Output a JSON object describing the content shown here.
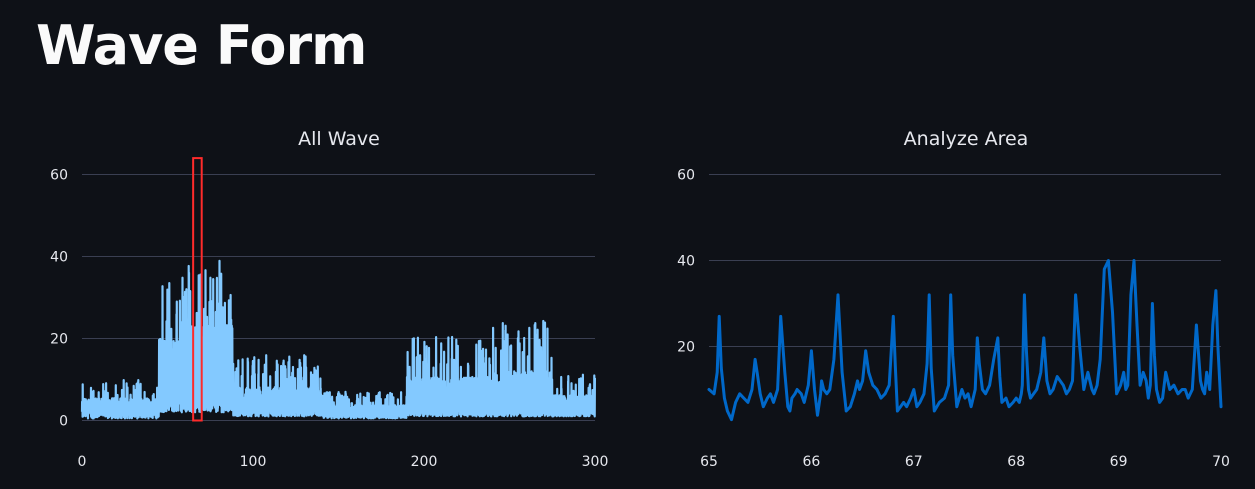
{
  "page": {
    "title": "Wave Form"
  },
  "colors": {
    "background": "#0e1117",
    "all_wave_line": "#83c9ff",
    "analyze_line": "#0068c9",
    "selection_box": "#ff2b2b",
    "grid": "#3a3f52"
  },
  "chart_data": [
    {
      "type": "line",
      "title": "All Wave",
      "xlabel": "",
      "ylabel": "",
      "xlim": [
        0,
        300
      ],
      "ylim": [
        0,
        65
      ],
      "xticks": [
        0,
        100,
        200,
        300
      ],
      "yticks": [
        0,
        20,
        40,
        60
      ],
      "grid": true,
      "series": [
        {
          "segments": [
            {
              "x_start": 0,
              "x_end": 45,
              "baseline": [
                0.5,
                3
              ],
              "peak": [
                3,
                10
              ]
            },
            {
              "x_start": 45,
              "x_end": 58,
              "baseline": [
                2,
                6
              ],
              "peak": [
                12,
                35
              ]
            },
            {
              "x_start": 58,
              "x_end": 88,
              "baseline": [
                2,
                6
              ],
              "peak": [
                15,
                39
              ]
            },
            {
              "x_start": 88,
              "x_end": 140,
              "baseline": [
                1,
                3
              ],
              "peak": [
                4,
                16
              ]
            },
            {
              "x_start": 140,
              "x_end": 190,
              "baseline": [
                0.5,
                2
              ],
              "peak": [
                2,
                7
              ]
            },
            {
              "x_start": 190,
              "x_end": 240,
              "baseline": [
                1,
                3
              ],
              "peak": [
                5,
                21
              ]
            },
            {
              "x_start": 240,
              "x_end": 275,
              "baseline": [
                1,
                3
              ],
              "peak": [
                5,
                25
              ]
            },
            {
              "x_start": 275,
              "x_end": 300,
              "baseline": [
                1,
                3
              ],
              "peak": [
                3,
                12
              ]
            }
          ]
        }
      ],
      "selection": {
        "x": [
          65,
          70
        ],
        "y": [
          0,
          64
        ]
      }
    },
    {
      "type": "line",
      "title": "Analyze Area",
      "xlabel": "",
      "ylabel": "",
      "xlim": [
        65,
        70
      ],
      "ylim": [
        0,
        65
      ],
      "xticks": [
        65,
        66,
        67,
        68,
        69,
        70
      ],
      "yticks": [
        20,
        40,
        60
      ],
      "grid": true,
      "series": [
        {
          "x": [
            65.0,
            65.05,
            65.08,
            65.1,
            65.12,
            65.15,
            65.18,
            65.22,
            65.26,
            65.3,
            65.34,
            65.38,
            65.42,
            65.45,
            65.47,
            65.5,
            65.53,
            65.57,
            65.6,
            65.63,
            65.67,
            65.7,
            65.74,
            65.77,
            65.79,
            65.81,
            65.84,
            65.86,
            65.9,
            65.93,
            65.97,
            66.0,
            66.03,
            66.06,
            66.09,
            66.1,
            66.12,
            66.15,
            66.18,
            66.22,
            66.26,
            66.3,
            66.34,
            66.38,
            66.42,
            66.45,
            66.47,
            66.5,
            66.53,
            66.56,
            66.6,
            66.64,
            66.68,
            66.72,
            66.76,
            66.8,
            66.82,
            66.84,
            66.87,
            66.9,
            66.93,
            66.97,
            67.0,
            67.03,
            67.06,
            67.1,
            67.13,
            67.15,
            67.17,
            67.2,
            67.25,
            67.3,
            67.34,
            67.36,
            67.38,
            67.42,
            67.47,
            67.5,
            67.53,
            67.56,
            67.6,
            67.62,
            67.64,
            67.67,
            67.7,
            67.74,
            67.78,
            67.82,
            67.84,
            67.86,
            67.9,
            67.93,
            67.97,
            68.0,
            68.03,
            68.05,
            68.06,
            68.08,
            68.1,
            68.12,
            68.14,
            68.17,
            68.2,
            68.24,
            68.27,
            68.3,
            68.33,
            68.36,
            68.4,
            68.43,
            68.46,
            68.49,
            68.52,
            68.55,
            68.58,
            68.62,
            68.66,
            68.68,
            68.7,
            68.72,
            68.74,
            68.76,
            68.79,
            68.82,
            68.86,
            68.9,
            68.94,
            68.98,
            69.02,
            69.05,
            69.07,
            69.09,
            69.12,
            69.15,
            69.18,
            69.21,
            69.24,
            69.27,
            69.29,
            69.31,
            69.33,
            69.35,
            69.37,
            69.4,
            69.43,
            69.46,
            69.5,
            69.54,
            69.58,
            69.62,
            69.65,
            69.68,
            69.72,
            69.76,
            69.8,
            69.82,
            69.84,
            69.86,
            69.89,
            69.92,
            69.95,
            69.97,
            70.0
          ],
          "y": [
            10,
            9,
            14,
            27,
            15,
            8,
            5,
            3,
            7,
            9,
            8,
            7,
            10,
            17,
            14,
            9,
            6,
            8,
            9,
            7,
            10,
            27,
            14,
            6,
            5,
            8,
            9,
            10,
            9,
            7,
            11,
            19,
            10,
            4,
            9,
            12,
            10,
            9,
            10,
            17,
            32,
            14,
            5,
            6,
            9,
            12,
            10,
            12,
            19,
            14,
            11,
            10,
            8,
            9,
            11,
            27,
            15,
            5,
            6,
            7,
            6,
            8,
            10,
            6,
            7,
            9,
            16,
            32,
            15,
            5,
            7,
            8,
            11,
            32,
            18,
            6,
            10,
            8,
            9,
            6,
            10,
            22,
            16,
            10,
            9,
            11,
            17,
            22,
            13,
            7,
            8,
            6,
            7,
            8,
            7,
            9,
            11,
            32,
            19,
            10,
            8,
            9,
            10,
            14,
            22,
            12,
            9,
            10,
            13,
            12,
            11,
            9,
            10,
            12,
            32,
            20,
            10,
            12,
            14,
            12,
            10,
            9,
            11,
            17,
            38,
            40,
            28,
            9,
            11,
            14,
            10,
            11,
            32,
            40,
            25,
            11,
            14,
            12,
            8,
            11,
            30,
            18,
            10,
            7,
            8,
            14,
            10,
            11,
            9,
            10,
            10,
            8,
            10,
            25,
            12,
            10,
            9,
            14,
            10,
            25,
            33,
            20,
            6
          ]
        }
      ]
    }
  ]
}
